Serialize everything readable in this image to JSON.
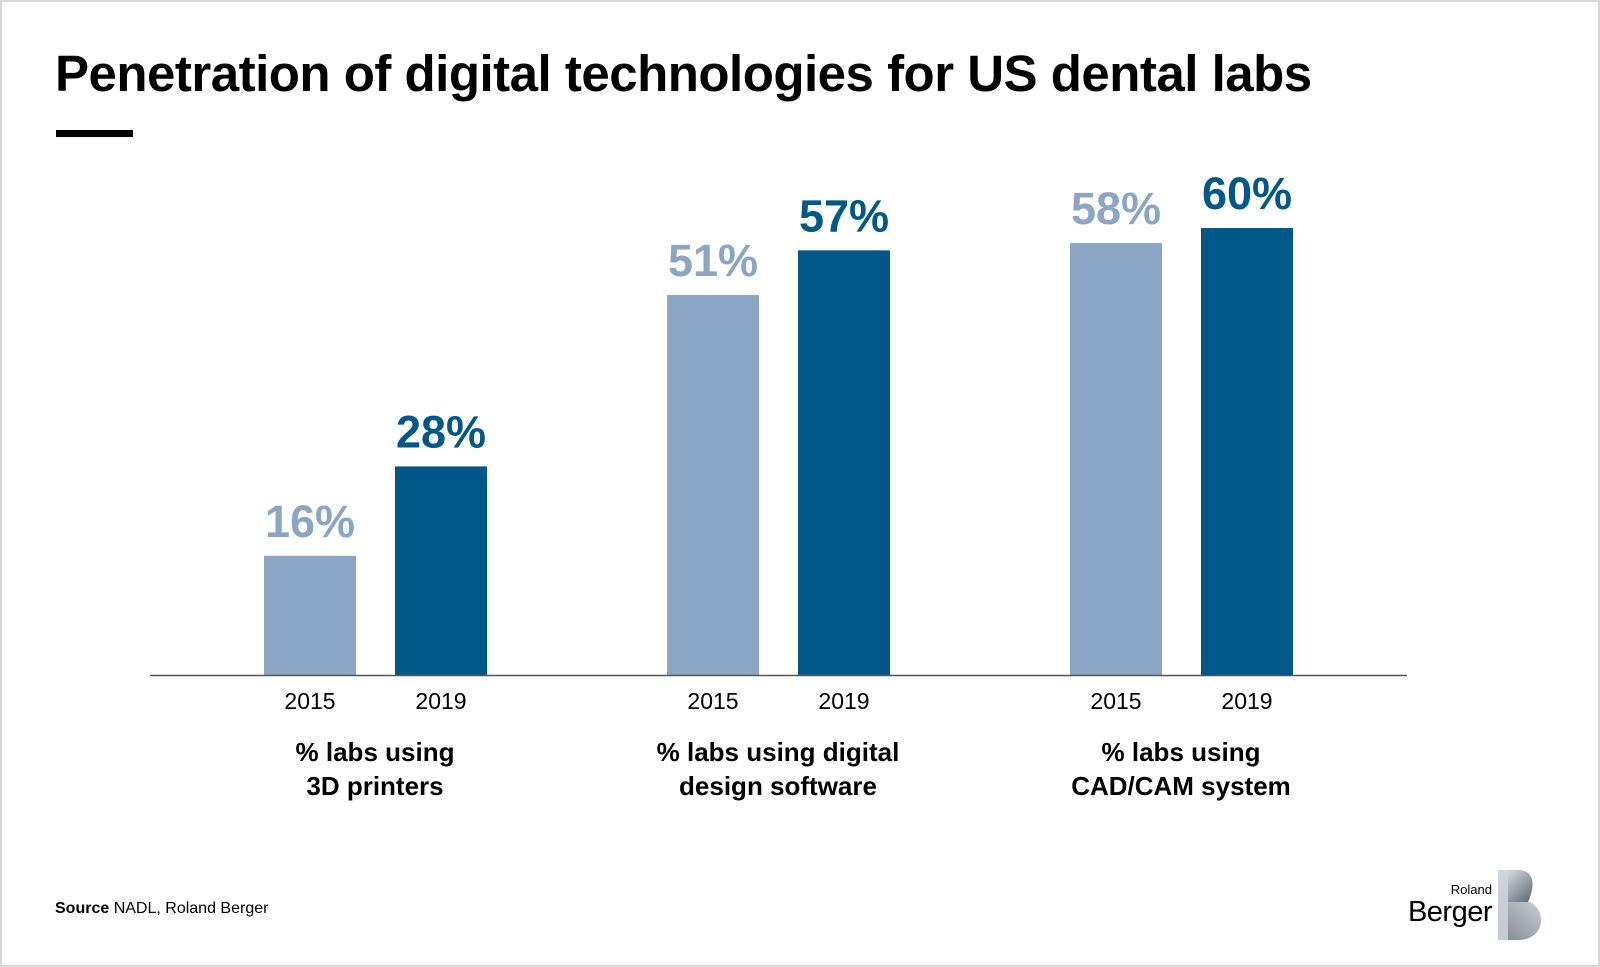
{
  "chart_data": {
    "type": "bar",
    "title": "Penetration of digital technologies for US dental labs",
    "groups": [
      {
        "label_lines": [
          "% labs using",
          "3D printers"
        ],
        "bars": [
          {
            "year": "2015",
            "value": 16,
            "label": "16%"
          },
          {
            "year": "2019",
            "value": 28,
            "label": "28%"
          }
        ]
      },
      {
        "label_lines": [
          "% labs using digital",
          "design software"
        ],
        "bars": [
          {
            "year": "2015",
            "value": 51,
            "label": "51%"
          },
          {
            "year": "2019",
            "value": 57,
            "label": "57%"
          }
        ]
      },
      {
        "label_lines": [
          "% labs using",
          "CAD/CAM system"
        ],
        "bars": [
          {
            "year": "2015",
            "value": 58,
            "label": "58%"
          },
          {
            "year": "2019",
            "value": 60,
            "label": "60%"
          }
        ]
      }
    ],
    "ylim": [
      0,
      60
    ],
    "grid": false,
    "colors": {
      "2015": "#8ba5c5",
      "2019": "#00578a"
    }
  },
  "source": {
    "label": "Source",
    "text": "NADL, Roland Berger"
  },
  "logo": {
    "small": "Roland",
    "big": "Berger",
    "icon": "roland-berger-b-logo"
  }
}
